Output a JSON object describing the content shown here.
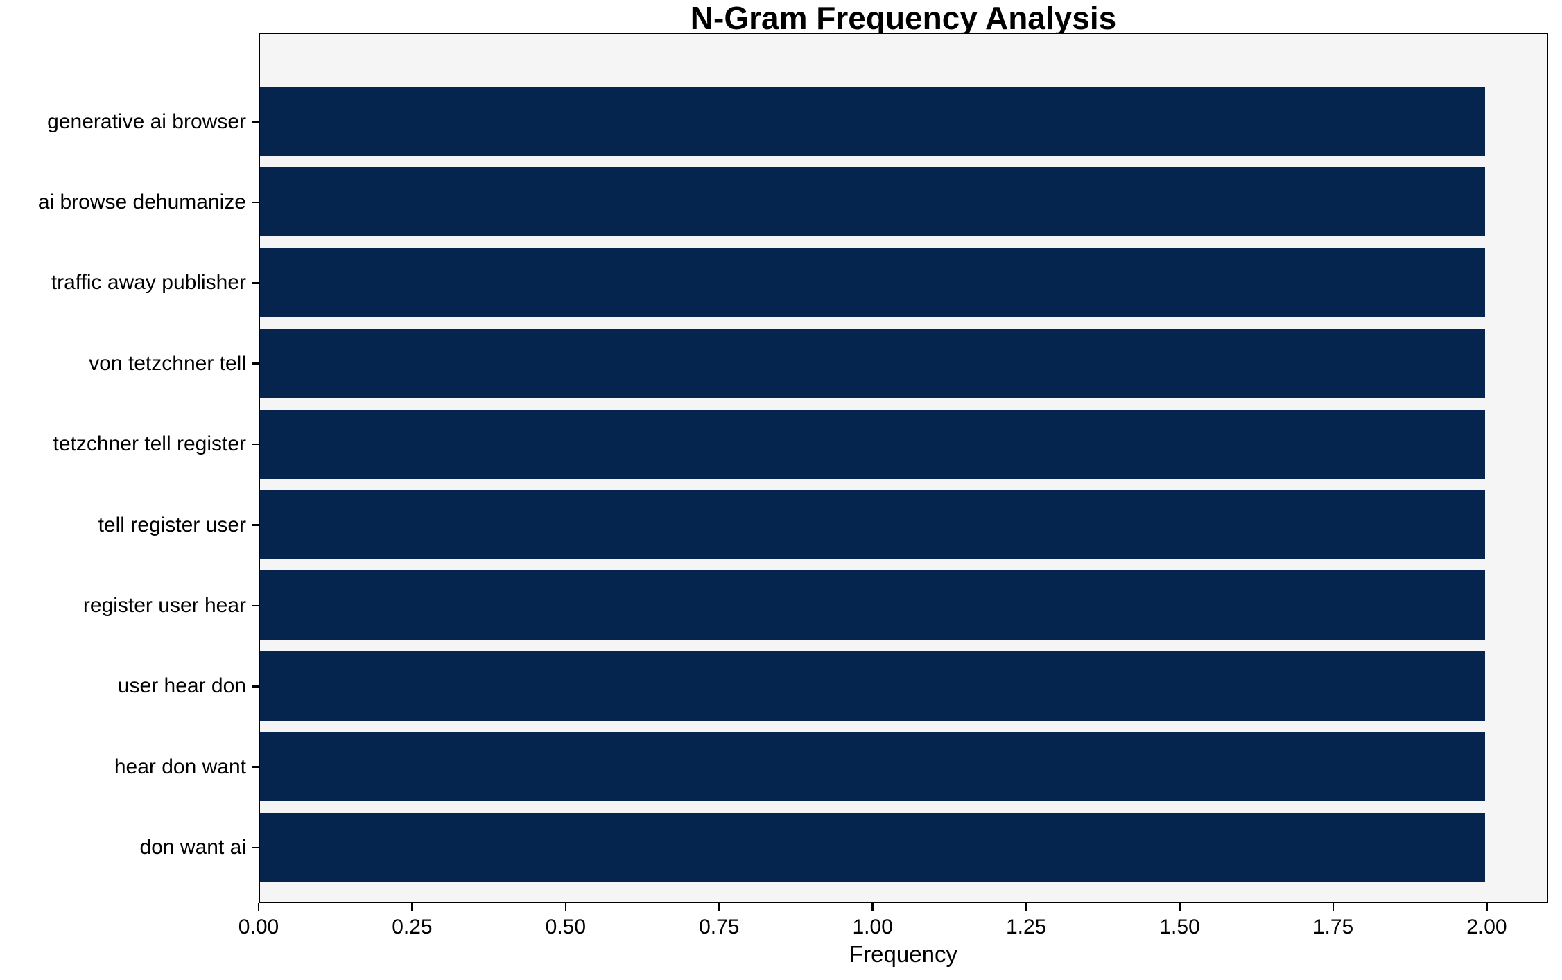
{
  "chart_data": {
    "type": "bar",
    "orientation": "horizontal",
    "title": "N-Gram Frequency Analysis",
    "xlabel": "Frequency",
    "ylabel": "",
    "categories": [
      "generative ai browser",
      "ai browse dehumanize",
      "traffic away publisher",
      "von tetzchner tell",
      "tetzchner tell register",
      "tell register user",
      "register user hear",
      "user hear don",
      "hear don want",
      "don want ai"
    ],
    "values": [
      2.0,
      2.0,
      2.0,
      2.0,
      2.0,
      2.0,
      2.0,
      2.0,
      2.0,
      2.0
    ],
    "xlim": [
      0,
      2.1
    ],
    "xtick_values": [
      0,
      0.25,
      0.5,
      0.75,
      1.0,
      1.25,
      1.5,
      1.75,
      2.0
    ],
    "xtick_labels": [
      "0.00",
      "0.25",
      "0.50",
      "0.75",
      "1.00",
      "1.25",
      "1.50",
      "1.75",
      "2.00"
    ],
    "grid": false,
    "legend_position": "none",
    "colors": {
      "bar": "#05254e",
      "plot_background": "#f5f5f6",
      "figure_background": "#ffffff",
      "axis": "#000000",
      "text": "#000000"
    }
  }
}
